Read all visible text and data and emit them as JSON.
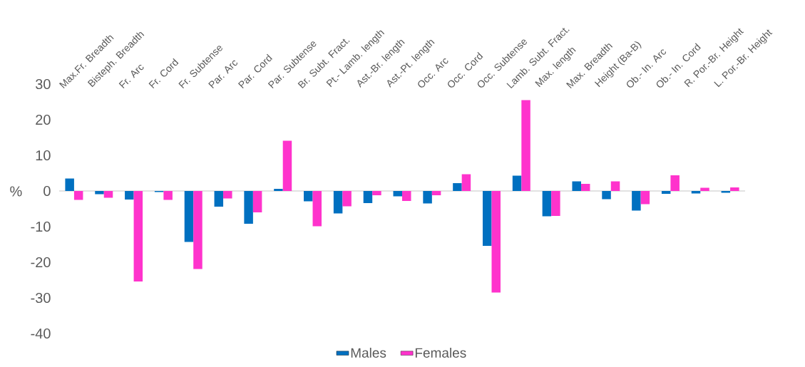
{
  "chart_data": {
    "type": "bar",
    "ylabel": "%",
    "categories": [
      "Max.Fr. Breadth",
      "Bisteph. Breadth",
      "Fr. Arc",
      "Fr. Cord",
      "Fr. Subtense",
      "Par. Arc",
      "Par. Cord",
      "Par. Subtense",
      "Br. Subt. Fract.",
      "Pt.- Lamb. length",
      "Ast.-Br. length",
      "Ast.-Pt. length",
      "Occ. Arc",
      "Occ. Cord",
      "Occ. Subtense",
      "Lamb. Subt. Fract.",
      "Max. length",
      "Max. Breadth",
      "Height (Ba-B)",
      "Ob.- In. Arc",
      "Ob.- In. Cord",
      "R. Por.-Br. Height",
      "L. Por.-Br. Height"
    ],
    "series": [
      {
        "name": "Males",
        "color": "#0070c0",
        "values": [
          3.5,
          -0.9,
          -2.4,
          -0.3,
          -14.3,
          -4.4,
          -9.2,
          0.6,
          -2.9,
          -6.3,
          -3.4,
          -1.5,
          -3.5,
          2.2,
          -15.4,
          4.3,
          -7.1,
          2.7,
          -2.3,
          -5.5,
          -0.8,
          -0.7,
          -0.5
        ]
      },
      {
        "name": "Females",
        "color": "#ff33cc",
        "values": [
          -2.5,
          -1.9,
          -25.4,
          -2.5,
          -21.9,
          -2.1,
          -6.0,
          14.1,
          -9.9,
          -4.3,
          -1.2,
          -2.8,
          -1.2,
          4.7,
          -28.5,
          25.5,
          -7.0,
          2.0,
          2.7,
          -3.7,
          4.4,
          0.9,
          1.0
        ]
      }
    ],
    "ylim": [
      -40,
      30
    ],
    "yticks": [
      -40,
      -30,
      -20,
      -10,
      0,
      10,
      20,
      30
    ],
    "legend": "bottom"
  }
}
